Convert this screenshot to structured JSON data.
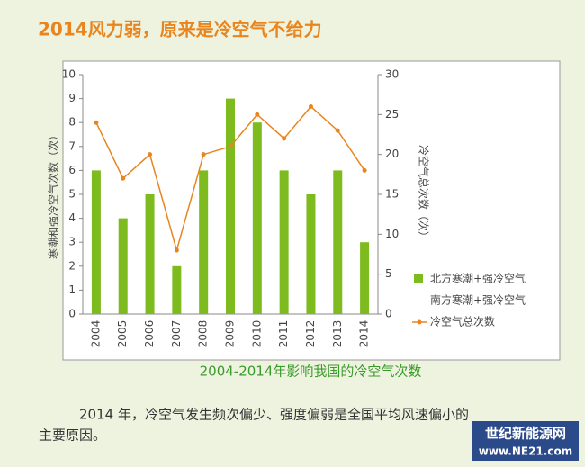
{
  "chart_data": {
    "type": "bar",
    "title": "2014风力弱，原来是冷空气不给力",
    "caption": "2004-2014年影响我国的冷空气次数",
    "ylabel": "寒潮和强冷空气次数（次）",
    "y2label": "冷空气总次数（次）",
    "categories": [
      "2004",
      "2005",
      "2006",
      "2007",
      "2008",
      "2009",
      "2010",
      "2011",
      "2012",
      "2013",
      "2014"
    ],
    "series": [
      {
        "name": "北方寒潮+强冷空气",
        "color": "#7dbb1f",
        "values": [
          6,
          4,
          5,
          2,
          6,
          9,
          8,
          6,
          5,
          6,
          3
        ]
      },
      {
        "name": "南方寒潮+强冷空气",
        "color": "#ffffff"
      },
      {
        "name": "冷空气总次数",
        "color": "#e8851e",
        "axis": "y2",
        "values": [
          24,
          17,
          20,
          8,
          20,
          21,
          25,
          22,
          26,
          23,
          18
        ]
      }
    ],
    "ylim": [
      0,
      10
    ],
    "yticks": [
      0,
      1,
      2,
      3,
      4,
      5,
      6,
      7,
      8,
      9,
      10
    ],
    "y2lim": [
      0,
      30
    ],
    "y2ticks": [
      0,
      5,
      10,
      15,
      20,
      25,
      30
    ]
  },
  "text": {
    "paragraph_lines": [
      "2014 年，冷空气发生频次偏少、强度偏弱是全国平均风速偏小的",
      "主要原因。"
    ],
    "logo": "世纪新能源网",
    "logo_url": "www.NE21.com"
  }
}
